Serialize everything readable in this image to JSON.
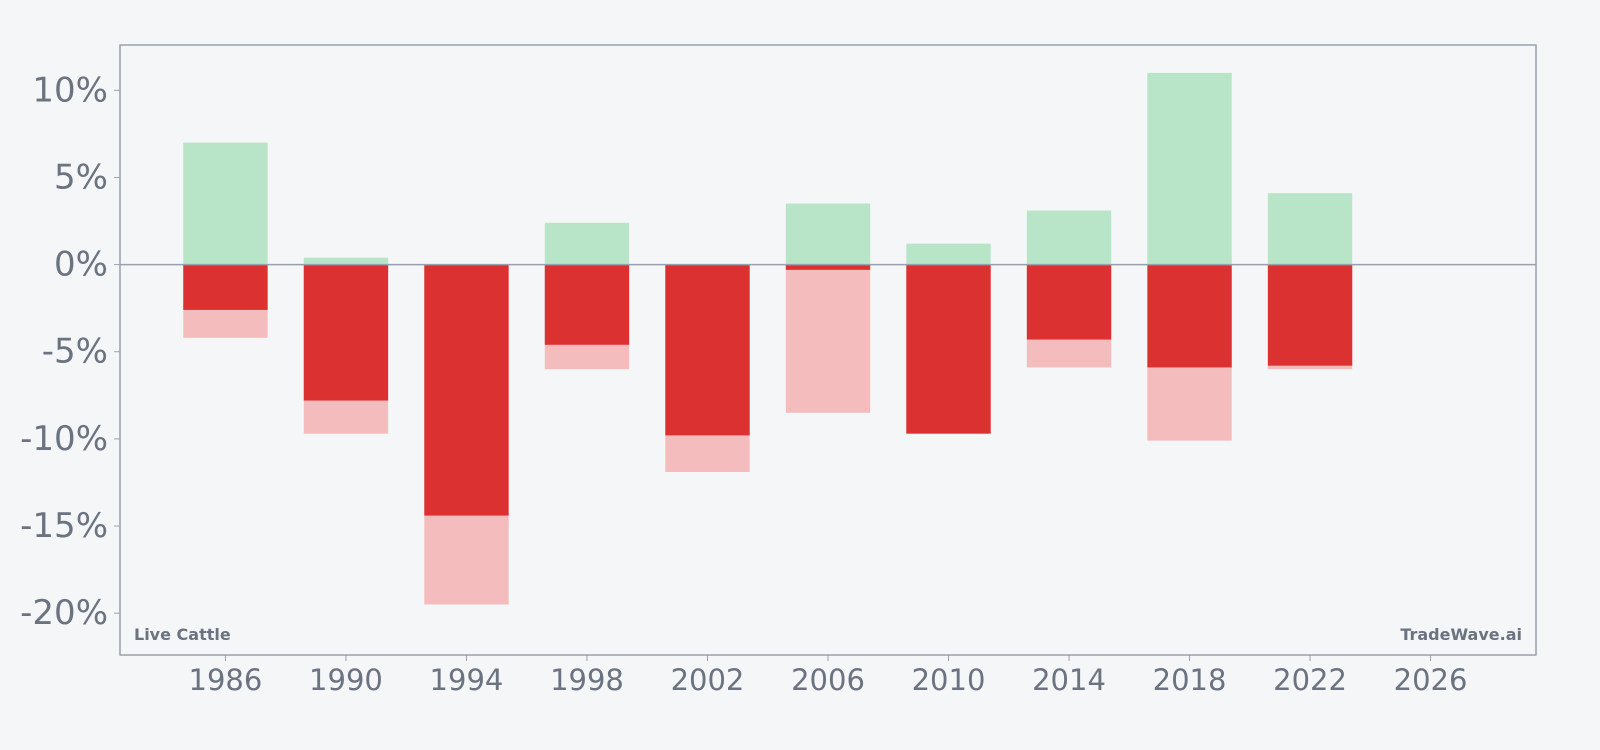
{
  "chart_data": {
    "type": "bar",
    "x": [
      1986,
      1990,
      1994,
      1998,
      2002,
      2006,
      2010,
      2014,
      2018,
      2022
    ],
    "series": [
      {
        "key": "max_gain",
        "values": [
          7.0,
          0.4,
          0.0,
          2.4,
          0.0,
          3.5,
          1.2,
          3.1,
          11.0,
          4.1
        ]
      },
      {
        "key": "max_drawdown",
        "values": [
          -4.2,
          -9.7,
          -19.5,
          -6.0,
          -11.9,
          -8.5,
          -9.7,
          -5.9,
          -10.1,
          -6.0
        ]
      },
      {
        "key": "close",
        "values": [
          -2.6,
          -7.8,
          -14.4,
          -4.6,
          -9.8,
          -0.3,
          -9.7,
          -4.3,
          -5.9,
          -5.8
        ]
      }
    ],
    "xlim": [
      1982.5,
      2029.5
    ],
    "ylim": [
      -22.4,
      12.6
    ],
    "yticks": [
      10,
      5,
      0,
      -5,
      -10,
      -15,
      -20
    ],
    "ytick_labels": [
      "10%",
      "5%",
      "0%",
      "-5%",
      "-10%",
      "-15%",
      "-20%"
    ],
    "xticks": [
      1986,
      1990,
      1994,
      1998,
      2002,
      2006,
      2010,
      2014,
      2018,
      2022,
      2026
    ],
    "xtick_labels": [
      "1986",
      "1990",
      "1994",
      "1998",
      "2002",
      "2006",
      "2010",
      "2014",
      "2018",
      "2022",
      "2026"
    ],
    "bar_width_years": 2.8,
    "grid": false,
    "zero_line": true
  },
  "annotations": {
    "left": "Live Cattle",
    "right": "TradeWave.ai"
  },
  "colors": {
    "background": "#f4f6f8",
    "frame": "#9aa0ad",
    "tick_text": "#6b7280",
    "gain": "#b8e4c8",
    "drawdown": "#f4bcbc",
    "close": "#dc3131",
    "zero_line": "#9aa0ad"
  }
}
